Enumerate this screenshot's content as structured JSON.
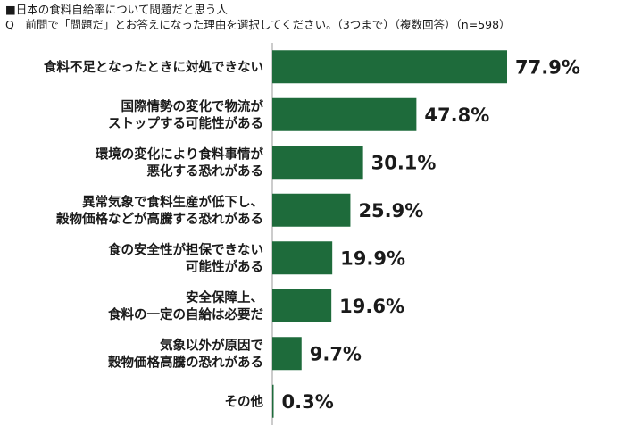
{
  "header": {
    "subtitle": "■日本の食料自給率について問題だと思う人",
    "question": "Q　前問で「問題だ」とお答えになった理由を選択してください。（3つまで）（複数回答）（n=598）"
  },
  "chart_data": {
    "type": "bar",
    "orientation": "horizontal",
    "bar_color": "#1e6b3b",
    "axis_color": "#9a9a9a",
    "xlim": [
      0,
      100
    ],
    "grid": false,
    "categories": [
      [
        "食料不足となったときに対処できない"
      ],
      [
        "国際情勢の変化で物流が",
        "ストップする可能性がある"
      ],
      [
        "環境の変化により食料事情が",
        "悪化する恐れがある"
      ],
      [
        "異常気象で食料生産が低下し、",
        "穀物価格などが高騰する恐れがある"
      ],
      [
        "食の安全性が担保できない",
        "可能性がある"
      ],
      [
        "安全保障上、",
        "食料の一定の自給は必要だ"
      ],
      [
        "気象以外が原因で",
        "穀物価格高騰の恐れがある"
      ],
      [
        "その他"
      ]
    ],
    "values": [
      77.9,
      47.8,
      30.1,
      25.9,
      19.9,
      19.6,
      9.7,
      0.3
    ],
    "value_labels": [
      "77.9%",
      "47.8%",
      "30.1%",
      "25.9%",
      "19.9%",
      "19.6%",
      "9.7%",
      "0.3%"
    ]
  }
}
